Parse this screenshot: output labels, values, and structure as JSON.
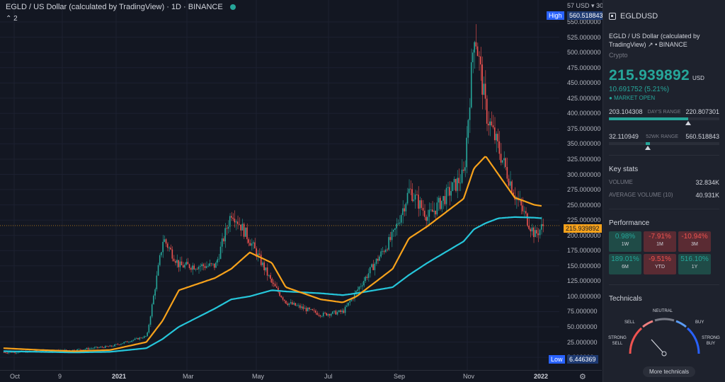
{
  "header": {
    "title": "EGLD / US Dollar (calculated by TradingView) · 1D · BINANCE",
    "indicators_toggle": "⌃ 2"
  },
  "price_scale": {
    "ticks": [
      "550.000000",
      "525.000000",
      "500.000000",
      "475.000000",
      "450.000000",
      "425.000000",
      "400.000000",
      "375.000000",
      "350.000000",
      "325.000000",
      "300.000000",
      "275.000000",
      "250.000000",
      "225.000000",
      "200.000000",
      "175.000000",
      "150.000000",
      "125.000000",
      "100.000000",
      "75.000000",
      "50.000000",
      "25.000000",
      "0.000000"
    ],
    "unit_label": "57 USD ▾ 30",
    "high_label": "High",
    "high_value": "560.518843",
    "current_value": "215.939892",
    "low_label": "Low",
    "low_value": "6.446369",
    "settings_icon": "gear-icon"
  },
  "time_axis": {
    "labels": [
      {
        "text": "Oct",
        "bold": false
      },
      {
        "text": "9",
        "bold": false
      },
      {
        "text": "2021",
        "bold": true
      },
      {
        "text": "Mar",
        "bold": false
      },
      {
        "text": "May",
        "bold": false
      },
      {
        "text": "Jul",
        "bold": false
      },
      {
        "text": "Sep",
        "bold": false
      },
      {
        "text": "Nov",
        "bold": false
      },
      {
        "text": "2022",
        "bold": true
      }
    ]
  },
  "colors": {
    "up": "#26a69a",
    "down": "#ef5350",
    "ma_fast": "#f7a21b",
    "ma_slow": "#26c6da",
    "background": "#131722"
  },
  "chart_data": {
    "type": "line",
    "x": [
      "2020-10-01",
      "2020-11-01",
      "2020-12-01",
      "2021-01-01",
      "2021-02-01",
      "2021-02-15",
      "2021-03-01",
      "2021-04-01",
      "2021-04-15",
      "2021-05-01",
      "2021-05-20",
      "2021-06-01",
      "2021-07-01",
      "2021-07-20",
      "2021-08-01",
      "2021-09-01",
      "2021-09-15",
      "2021-10-01",
      "2021-11-01",
      "2021-11-10",
      "2021-11-20",
      "2021-12-01",
      "2021-12-15",
      "2022-01-01",
      "2022-01-08"
    ],
    "series": [
      {
        "values": [
          8,
          10,
          12,
          18,
          35,
          195,
          150,
          150,
          240,
          190,
          120,
          90,
          70,
          75,
          110,
          200,
          275,
          230,
          300,
          540,
          400,
          340,
          265,
          200,
          216
        ]
      },
      {
        "values": [
          15,
          12,
          10,
          12,
          25,
          60,
          110,
          130,
          145,
          172,
          155,
          115,
          95,
          90,
          100,
          145,
          195,
          215,
          260,
          310,
          330,
          300,
          262,
          250,
          248
        ]
      },
      {
        "values": [
          10,
          9,
          8,
          9,
          15,
          30,
          50,
          80,
          95,
          100,
          110,
          108,
          105,
          102,
          105,
          115,
          135,
          155,
          190,
          210,
          220,
          228,
          230,
          229,
          228
        ]
      }
    ],
    "ylim": [
      0,
      570
    ],
    "grid": true
  },
  "symbol": {
    "ticker": "EGLDUSD",
    "full_name": "EGLD / US Dollar (calculated by TradingView)",
    "exchange": "BINANCE",
    "type": "Crypto",
    "price": "215.939892",
    "currency": "USD",
    "change": "10.691752 (5.21%)",
    "market_status": "MARKET OPEN",
    "days_range": {
      "low": "203.104308",
      "label": "DAY'S RANGE",
      "high": "220.807301",
      "fill": 0.72
    },
    "wk52_range": {
      "low": "32.110949",
      "label": "52WK RANGE",
      "high": "560.518843",
      "fill": 0.35
    }
  },
  "key_stats": {
    "title": "Key stats",
    "volume_label": "VOLUME",
    "volume": "32.834K",
    "avg_volume_label": "AVERAGE VOLUME (10)",
    "avg_volume": "40.931K"
  },
  "performance": {
    "title": "Performance",
    "cells": [
      {
        "value": "0.98%",
        "label": "1W",
        "dir": "up"
      },
      {
        "value": "-7.91%",
        "label": "1M",
        "dir": "down"
      },
      {
        "value": "-10.94%",
        "label": "3M",
        "dir": "down"
      },
      {
        "value": "189.01%",
        "label": "6M",
        "dir": "up"
      },
      {
        "value": "-9.51%",
        "label": "YTD",
        "dir": "down"
      },
      {
        "value": "516.10%",
        "label": "1Y",
        "dir": "up"
      }
    ]
  },
  "technicals": {
    "title": "Technicals",
    "neutral": "NEUTRAL",
    "sell": "SELL",
    "buy": "BUY",
    "strong_sell": "STRONG SELL",
    "strong_buy": "STRONG BUY",
    "more_button": "More technicals"
  }
}
